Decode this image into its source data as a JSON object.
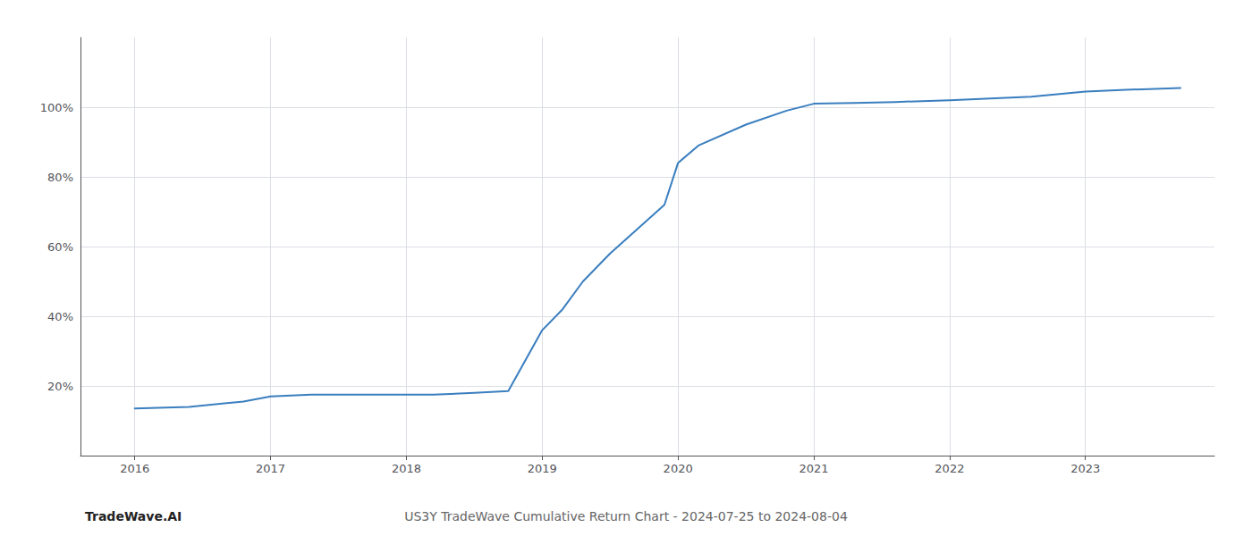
{
  "chart_data": {
    "type": "line",
    "title": "US3Y TradeWave Cumulative Return Chart - 2024-07-25 to 2024-08-04",
    "annotations": [
      "TradeWave.AI"
    ],
    "x": [
      2016.0,
      2016.4,
      2016.8,
      2017.0,
      2017.3,
      2017.6,
      2018.0,
      2018.2,
      2018.5,
      2018.75,
      2019.0,
      2019.15,
      2019.3,
      2019.5,
      2019.7,
      2019.9,
      2020.0,
      2020.15,
      2020.5,
      2020.8,
      2021.0,
      2021.3,
      2021.6,
      2022.0,
      2022.3,
      2022.6,
      2023.0,
      2023.3,
      2023.7
    ],
    "values": [
      13.5,
      14.0,
      15.5,
      17.0,
      17.5,
      17.5,
      17.5,
      17.5,
      18.0,
      18.5,
      36.0,
      42.0,
      50.0,
      58.0,
      65.0,
      72.0,
      84.0,
      89.0,
      95.0,
      99.0,
      101.0,
      101.2,
      101.5,
      102.0,
      102.5,
      103.0,
      104.5,
      105.0,
      105.5
    ],
    "color": "#3a7ebf",
    "xlim": [
      2015.6,
      2023.95
    ],
    "xticks": [
      2016,
      2017,
      2018,
      2019,
      2020,
      2021,
      2022,
      2023
    ],
    "ylim": [
      0,
      120
    ],
    "yticks": [
      {
        "value": 20,
        "label": "20%"
      },
      {
        "value": 40,
        "label": "40%"
      },
      {
        "value": 60,
        "label": "60%"
      },
      {
        "value": 80,
        "label": "80%"
      },
      {
        "value": 100,
        "label": "100%"
      }
    ],
    "grid": true
  }
}
